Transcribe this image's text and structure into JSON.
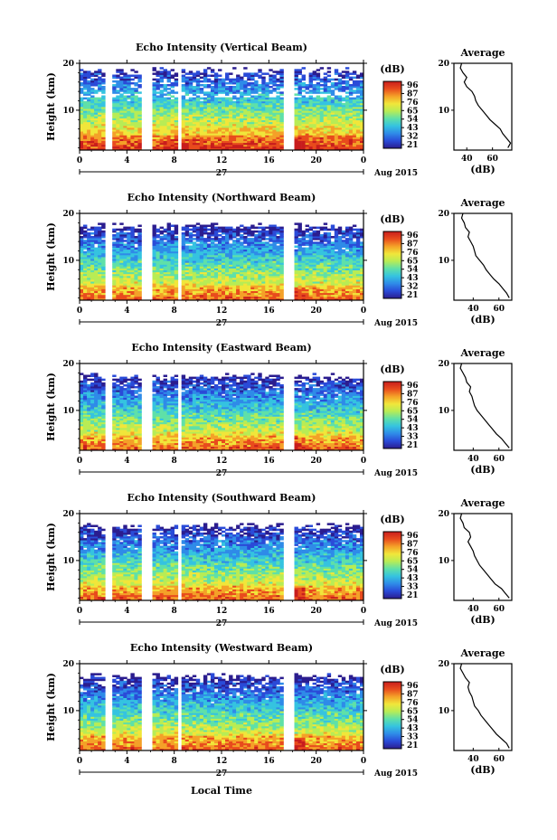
{
  "figure": {
    "xlabel": "Local Time",
    "date_label": "27",
    "month_label": "Aug 2015",
    "ylabel": "Height (km)",
    "colorbar_unit": "(dB)",
    "colorbar_ticks": [
      [
        "96",
        "87",
        "76",
        "65",
        "54",
        "43",
        "32",
        "21"
      ],
      [
        "96",
        "87",
        "76",
        "65",
        "54",
        "43",
        "32",
        "21"
      ],
      [
        "96",
        "87",
        "76",
        "65",
        "54",
        "43",
        "33",
        "21"
      ],
      [
        "96",
        "87",
        "76",
        "65",
        "54",
        "43",
        "33",
        "21"
      ],
      [
        "96",
        "87",
        "76",
        "65",
        "54",
        "43",
        "33",
        "21"
      ]
    ],
    "colormap": [
      "#2b1d8f",
      "#2a4bd8",
      "#2f8be8",
      "#35c3e0",
      "#5fe0a8",
      "#b8ec55",
      "#f1e63a",
      "#f4a128",
      "#e84b1d",
      "#c81d1d"
    ],
    "average_title": "Average",
    "average_xlabel": "(dB)"
  },
  "chart_data": [
    {
      "type": "heatmap",
      "title": "Echo Intensity (Vertical Beam)",
      "xlabel": "Local Time",
      "ylabel": "Height (km)",
      "xlim": [
        0,
        24
      ],
      "ylim": [
        1.5,
        20
      ],
      "x_ticks": [
        "0",
        "4",
        "8",
        "12",
        "16",
        "20",
        "0"
      ],
      "y_ticks": [
        "10",
        "20"
      ],
      "colorbar": {
        "label": "(dB)",
        "range": [
          21,
          96
        ]
      },
      "data_gaps_hours": [
        [
          2.3,
          2.9
        ],
        [
          5.2,
          6.1
        ],
        [
          8.2,
          8.7
        ],
        [
          17.2,
          18.0
        ]
      ],
      "average_profile": {
        "xlabel": "(dB)",
        "x_ticks": [
          "40",
          "60"
        ],
        "xlim": [
          30,
          75
        ],
        "height_km": [
          2,
          3,
          4,
          5,
          6,
          7,
          8,
          9,
          10,
          11,
          12,
          13,
          14,
          15,
          16,
          17,
          18,
          19,
          20
        ],
        "db": [
          72,
          74,
          71,
          68,
          66,
          62,
          58,
          55,
          52,
          49,
          47,
          46,
          44,
          40,
          38,
          40,
          37,
          35,
          36
        ]
      }
    },
    {
      "type": "heatmap",
      "title": "Echo Intensity (Northward Beam)",
      "xlabel": "Local Time",
      "ylabel": "Height (km)",
      "xlim": [
        0,
        24
      ],
      "ylim": [
        1.5,
        20
      ],
      "x_ticks": [
        "0",
        "4",
        "8",
        "12",
        "16",
        "20",
        "0"
      ],
      "y_ticks": [
        "10",
        "20"
      ],
      "colorbar": {
        "label": "(dB)",
        "range": [
          21,
          96
        ]
      },
      "data_gaps_hours": [
        [
          2.3,
          2.9
        ],
        [
          5.2,
          6.1
        ],
        [
          8.2,
          8.7
        ],
        [
          17.2,
          18.0
        ]
      ],
      "average_profile": {
        "xlabel": "(dB)",
        "x_ticks": [
          "40",
          "60"
        ],
        "xlim": [
          25,
          70
        ],
        "height_km": [
          2,
          3,
          4,
          5,
          6,
          7,
          8,
          9,
          10,
          11,
          12,
          13,
          14,
          15,
          16,
          17,
          18,
          19,
          20
        ],
        "db": [
          68,
          66,
          63,
          60,
          56,
          53,
          50,
          48,
          45,
          42,
          41,
          40,
          38,
          36,
          37,
          34,
          33,
          31,
          32
        ]
      }
    },
    {
      "type": "heatmap",
      "title": "Echo Intensity (Eastward Beam)",
      "xlabel": "Local Time",
      "ylabel": "Height (km)",
      "xlim": [
        0,
        24
      ],
      "ylim": [
        1.5,
        20
      ],
      "x_ticks": [
        "0",
        "4",
        "8",
        "12",
        "16",
        "20",
        "0"
      ],
      "y_ticks": [
        "10",
        "20"
      ],
      "colorbar": {
        "label": "(dB)",
        "range": [
          21,
          96
        ]
      },
      "data_gaps_hours": [
        [
          2.3,
          2.9
        ],
        [
          5.2,
          6.1
        ],
        [
          8.2,
          8.7
        ],
        [
          17.2,
          18.0
        ]
      ],
      "average_profile": {
        "xlabel": "(dB)",
        "x_ticks": [
          "40",
          "60"
        ],
        "xlim": [
          25,
          70
        ],
        "height_km": [
          2,
          3,
          4,
          5,
          6,
          7,
          8,
          9,
          10,
          11,
          12,
          13,
          14,
          15,
          16,
          17,
          18,
          19,
          20
        ],
        "db": [
          68,
          65,
          62,
          58,
          55,
          52,
          49,
          46,
          43,
          41,
          40,
          39,
          37,
          38,
          35,
          34,
          32,
          30,
          31
        ]
      }
    },
    {
      "type": "heatmap",
      "title": "Echo Intensity (Southward Beam)",
      "xlabel": "Local Time",
      "ylabel": "Height (km)",
      "xlim": [
        0,
        24
      ],
      "ylim": [
        1.5,
        20
      ],
      "x_ticks": [
        "0",
        "4",
        "8",
        "12",
        "16",
        "20",
        "0"
      ],
      "y_ticks": [
        "10",
        "20"
      ],
      "colorbar": {
        "label": "(dB)",
        "range": [
          21,
          96
        ]
      },
      "data_gaps_hours": [
        [
          2.3,
          2.9
        ],
        [
          5.2,
          6.1
        ],
        [
          8.2,
          8.7
        ],
        [
          17.2,
          18.0
        ]
      ],
      "average_profile": {
        "xlabel": "(dB)",
        "x_ticks": [
          "40",
          "60"
        ],
        "xlim": [
          25,
          70
        ],
        "height_km": [
          2,
          3,
          4,
          5,
          6,
          7,
          8,
          9,
          10,
          11,
          12,
          13,
          14,
          15,
          16,
          17,
          18,
          19,
          20
        ],
        "db": [
          68,
          65,
          62,
          57,
          54,
          51,
          48,
          45,
          43,
          41,
          40,
          38,
          36,
          38,
          37,
          33,
          32,
          30,
          31
        ]
      }
    },
    {
      "type": "heatmap",
      "title": "Echo Intensity (Westward Beam)",
      "xlabel": "Local Time",
      "ylabel": "Height (km)",
      "xlim": [
        0,
        24
      ],
      "ylim": [
        1.5,
        20
      ],
      "x_ticks": [
        "0",
        "4",
        "8",
        "12",
        "16",
        "20",
        "0"
      ],
      "y_ticks": [
        "10",
        "20"
      ],
      "colorbar": {
        "label": "(dB)",
        "range": [
          21,
          96
        ]
      },
      "data_gaps_hours": [
        [
          2.3,
          2.9
        ],
        [
          5.2,
          6.1
        ],
        [
          8.2,
          8.7
        ],
        [
          17.2,
          18.0
        ]
      ],
      "average_profile": {
        "xlabel": "(dB)",
        "x_ticks": [
          "40",
          "60"
        ],
        "xlim": [
          25,
          70
        ],
        "height_km": [
          2,
          3,
          4,
          5,
          6,
          7,
          8,
          9,
          10,
          11,
          12,
          13,
          14,
          15,
          16,
          17,
          18,
          19,
          20
        ],
        "db": [
          68,
          66,
          62,
          58,
          55,
          52,
          49,
          46,
          44,
          41,
          40,
          39,
          37,
          36,
          37,
          34,
          32,
          30,
          31
        ]
      }
    }
  ]
}
